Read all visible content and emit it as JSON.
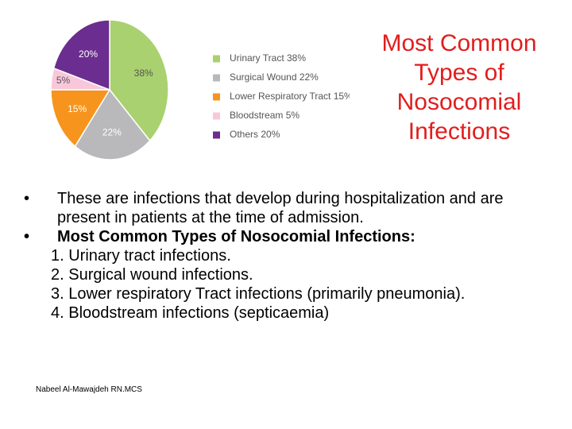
{
  "chart_data": {
    "type": "pie",
    "categories": [
      "Urinary Tract 38%",
      "Surgical Wound 22%",
      "Lower Respiratory Tract 15%",
      "Bloodstream 5%",
      "Others 20%"
    ],
    "values": [
      38,
      22,
      15,
      5,
      20
    ],
    "value_labels": [
      "38%",
      "22%",
      "15%",
      "5%",
      "20%"
    ],
    "colors": [
      "#a9d16f",
      "#b9b9bb",
      "#f7941d",
      "#f8c8da",
      "#6b2d8f"
    ]
  },
  "title": "Most Common Types of Nosocomial Infections",
  "bullets": [
    "These are infections that develop during hospitalization and are present in patients at the time of admission.",
    "Most Common Types of Nosocomial Infections:"
  ],
  "numbered": [
    "1. Urinary tract infections.",
    "2. Surgical wound infections.",
    "3. Lower respiratory Tract infections (primarily pneumonia).",
    "4. Bloodstream infections (septicaemia)"
  ],
  "footer": "Nabeel Al-Mawajdeh RN.MCS"
}
